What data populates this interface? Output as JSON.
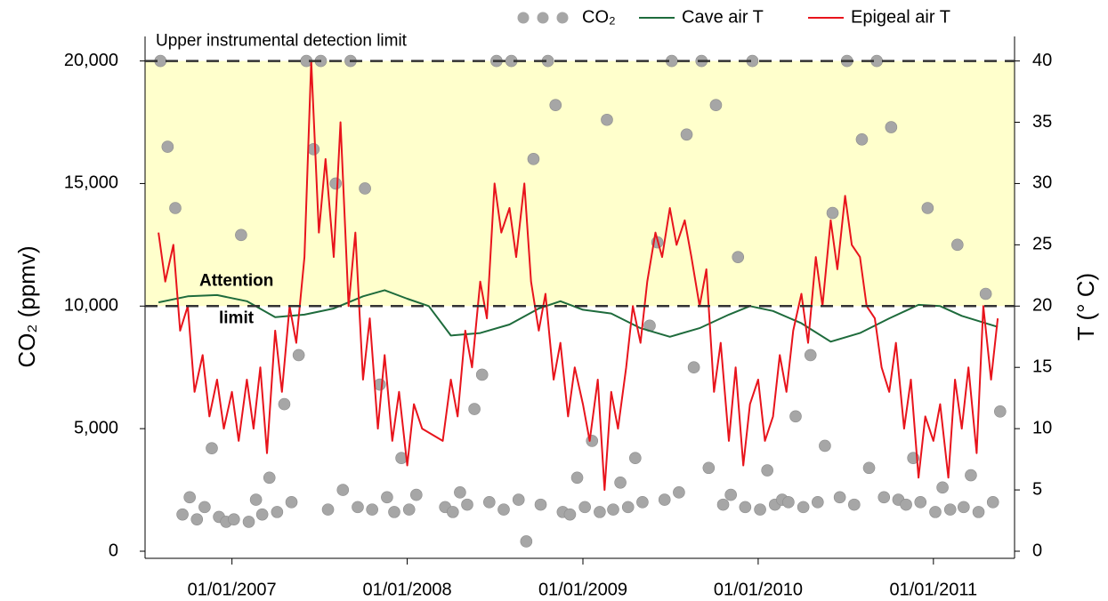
{
  "chart_data": {
    "type": "scatter",
    "y_label": "CO₂ (ppmv)",
    "y2_label": "T (° C)",
    "xlim": [
      "2006-07-04",
      "2011-06-19"
    ],
    "xticks": [
      {
        "value": "2007-01-01",
        "label": "01/01/2007"
      },
      {
        "value": "2008-01-01",
        "label": "01/01/2008"
      },
      {
        "value": "2009-01-01",
        "label": "01/01/2009"
      },
      {
        "value": "2010-01-01",
        "label": "01/01/2010"
      },
      {
        "value": "2011-01-01",
        "label": "01/01/2011"
      }
    ],
    "ylim": [
      0,
      21000
    ],
    "yticks": [
      0,
      {
        "value": 5000,
        "label": "5,000"
      },
      {
        "value": 10000,
        "label": "10,000"
      },
      {
        "value": 15000,
        "label": "15,000"
      },
      {
        "value": 20000,
        "label": "20,000"
      }
    ],
    "y2lim": [
      0,
      42
    ],
    "y2ticks": [
      0,
      5,
      10,
      15,
      20,
      25,
      30,
      35,
      40
    ],
    "band": {
      "from": 10000,
      "to": 20000,
      "color": "#ffffcc"
    },
    "reference_lines": [
      {
        "value": 20000,
        "label": "Upper instrumental detection limit"
      },
      {
        "value": 10000,
        "label": [
          "Attention",
          "limit"
        ]
      }
    ],
    "series": [
      {
        "name": "CO₂",
        "type": "scatter",
        "color": "#a6a6a6",
        "x": [
          "2006-08-05",
          "2006-08-20",
          "2006-09-05",
          "2006-09-20",
          "2006-10-05",
          "2006-10-20",
          "2006-11-05",
          "2006-11-20",
          "2006-12-05",
          "2006-12-20",
          "2007-01-05",
          "2007-01-20",
          "2007-02-05",
          "2007-02-20",
          "2007-03-05",
          "2007-03-20",
          "2007-04-05",
          "2007-04-20",
          "2007-05-05",
          "2007-05-20",
          "2007-06-05",
          "2007-06-20",
          "2007-07-05",
          "2007-07-20",
          "2007-08-05",
          "2007-08-20",
          "2007-09-05",
          "2007-09-20",
          "2007-10-05",
          "2007-10-20",
          "2007-11-05",
          "2007-11-20",
          "2007-12-05",
          "2007-12-20",
          "2008-01-05",
          "2008-01-20",
          "2008-03-20",
          "2008-04-05",
          "2008-04-20",
          "2008-05-05",
          "2008-05-20",
          "2008-06-05",
          "2008-06-20",
          "2008-07-05",
          "2008-07-20",
          "2008-08-05",
          "2008-08-20",
          "2008-09-05",
          "2008-09-20",
          "2008-10-05",
          "2008-10-20",
          "2008-11-05",
          "2008-11-20",
          "2008-12-05",
          "2008-12-20",
          "2009-01-05",
          "2009-01-20",
          "2009-02-05",
          "2009-02-20",
          "2009-03-05",
          "2009-03-20",
          "2009-04-05",
          "2009-04-20",
          "2009-05-05",
          "2009-05-20",
          "2009-06-05",
          "2009-06-20",
          "2009-07-05",
          "2009-07-20",
          "2009-08-05",
          "2009-08-20",
          "2009-09-05",
          "2009-09-20",
          "2009-10-05",
          "2009-10-20",
          "2009-11-05",
          "2009-11-20",
          "2009-12-05",
          "2009-12-20",
          "2010-01-05",
          "2010-01-20",
          "2010-02-05",
          "2010-02-20",
          "2010-03-05",
          "2010-03-20",
          "2010-04-05",
          "2010-04-20",
          "2010-05-05",
          "2010-05-20",
          "2010-06-05",
          "2010-06-20",
          "2010-07-05",
          "2010-07-20",
          "2010-08-05",
          "2010-08-20",
          "2010-09-05",
          "2010-09-20",
          "2010-10-05",
          "2010-10-20",
          "2010-11-05",
          "2010-11-20",
          "2010-12-05",
          "2010-12-20",
          "2011-01-05",
          "2011-01-20",
          "2011-02-05",
          "2011-02-20",
          "2011-03-05",
          "2011-03-20",
          "2011-04-05",
          "2011-04-20",
          "2011-05-05",
          "2011-05-20"
        ],
        "values": [
          20000,
          16500,
          14000,
          1500,
          2200,
          1300,
          1800,
          4200,
          1400,
          1200,
          1300,
          12900,
          1200,
          2100,
          1500,
          3000,
          1600,
          6000,
          2000,
          8000,
          20000,
          16400,
          20000,
          1700,
          15000,
          2500,
          20000,
          1800,
          14800,
          1700,
          6800,
          2200,
          1600,
          3800,
          1700,
          2300,
          1800,
          1600,
          2400,
          1900,
          5800,
          7200,
          2000,
          20000,
          1700,
          20000,
          2100,
          400,
          16000,
          1900,
          20000,
          18200,
          1600,
          1500,
          3000,
          1800,
          4500,
          1600,
          17600,
          1700,
          2800,
          1800,
          3800,
          2000,
          9200,
          12600,
          2100,
          20000,
          2400,
          17000,
          7500,
          20000,
          3400,
          18200,
          1900,
          2300,
          12000,
          1800,
          20000,
          1700,
          3300,
          1900,
          2100,
          2000,
          5500,
          1800,
          8000,
          2000,
          4300,
          13800,
          2200,
          20000,
          1900,
          16800,
          3400,
          20000,
          2200,
          17300,
          2100,
          1900,
          3800,
          2000,
          14000,
          1600,
          2600,
          1700,
          12500,
          1800,
          3100,
          1600,
          10500,
          2000,
          5700
        ]
      },
      {
        "name": "Cave air T",
        "type": "line",
        "axis": "y2",
        "color": "#1e6b3c",
        "x": [
          "2006-08-01",
          "2006-10-01",
          "2006-12-01",
          "2007-02-01",
          "2007-04-01",
          "2007-06-01",
          "2007-08-01",
          "2007-10-01",
          "2007-11-15",
          "2008-01-01",
          "2008-02-15",
          "2008-04-01",
          "2008-06-01",
          "2008-08-01",
          "2008-10-01",
          "2008-11-15",
          "2009-01-01",
          "2009-03-01",
          "2009-05-01",
          "2009-07-01",
          "2009-09-01",
          "2009-11-01",
          "2009-12-15",
          "2010-02-01",
          "2010-04-01",
          "2010-06-01",
          "2010-08-01",
          "2010-10-01",
          "2010-12-01",
          "2011-01-15",
          "2011-03-01",
          "2011-05-15"
        ],
        "values": [
          20.3,
          20.8,
          20.9,
          20.4,
          19.1,
          19.3,
          19.8,
          20.8,
          21.3,
          20.6,
          20.0,
          17.6,
          17.8,
          18.5,
          19.8,
          20.4,
          19.7,
          19.4,
          18.2,
          17.5,
          18.2,
          19.3,
          20.0,
          19.6,
          18.6,
          17.1,
          17.8,
          19.0,
          20.1,
          20.0,
          19.2,
          18.3
        ]
      },
      {
        "name": "Epigeal air T",
        "type": "line",
        "axis": "y2",
        "color": "#e8141c",
        "x": [
          "2006-08-01",
          "2006-08-15",
          "2006-09-01",
          "2006-09-15",
          "2006-10-01",
          "2006-10-15",
          "2006-11-01",
          "2006-11-15",
          "2006-12-01",
          "2006-12-15",
          "2007-01-01",
          "2007-01-15",
          "2007-02-01",
          "2007-02-15",
          "2007-03-01",
          "2007-03-15",
          "2007-04-01",
          "2007-04-15",
          "2007-05-01",
          "2007-05-15",
          "2007-06-01",
          "2007-06-15",
          "2007-07-01",
          "2007-07-15",
          "2007-08-01",
          "2007-08-15",
          "2007-09-01",
          "2007-09-15",
          "2007-10-01",
          "2007-10-15",
          "2007-11-01",
          "2007-11-15",
          "2007-12-01",
          "2007-12-15",
          "2008-01-01",
          "2008-01-15",
          "2008-02-01",
          "2008-03-15",
          "2008-04-01",
          "2008-04-15",
          "2008-05-01",
          "2008-05-15",
          "2008-06-01",
          "2008-06-15",
          "2008-07-01",
          "2008-07-15",
          "2008-08-01",
          "2008-08-15",
          "2008-09-01",
          "2008-09-15",
          "2008-10-01",
          "2008-10-15",
          "2008-11-01",
          "2008-11-15",
          "2008-12-01",
          "2008-12-15",
          "2009-01-01",
          "2009-01-15",
          "2009-02-01",
          "2009-02-15",
          "2009-03-01",
          "2009-03-15",
          "2009-04-01",
          "2009-04-15",
          "2009-05-01",
          "2009-05-15",
          "2009-06-01",
          "2009-06-15",
          "2009-07-01",
          "2009-07-15",
          "2009-08-01",
          "2009-08-15",
          "2009-09-01",
          "2009-09-15",
          "2009-10-01",
          "2009-10-15",
          "2009-11-01",
          "2009-11-15",
          "2009-12-01",
          "2009-12-15",
          "2010-01-01",
          "2010-01-15",
          "2010-02-01",
          "2010-02-15",
          "2010-03-01",
          "2010-03-15",
          "2010-04-01",
          "2010-04-15",
          "2010-05-01",
          "2010-05-15",
          "2010-06-01",
          "2010-06-15",
          "2010-07-01",
          "2010-07-15",
          "2010-08-01",
          "2010-08-15",
          "2010-09-01",
          "2010-09-15",
          "2010-10-01",
          "2010-10-15",
          "2010-11-01",
          "2010-11-15",
          "2010-12-01",
          "2010-12-15",
          "2011-01-01",
          "2011-01-15",
          "2011-02-01",
          "2011-02-15",
          "2011-03-01",
          "2011-03-15",
          "2011-04-01",
          "2011-04-15",
          "2011-05-01",
          "2011-05-15"
        ],
        "values": [
          26,
          22,
          25,
          18,
          20,
          13,
          16,
          11,
          14,
          10,
          13,
          9,
          14,
          10,
          15,
          8,
          18,
          13,
          20,
          17,
          24,
          40,
          26,
          32,
          24,
          35,
          20,
          26,
          14,
          19,
          10,
          16,
          9,
          13,
          7,
          12,
          10,
          9,
          14,
          11,
          18,
          15,
          22,
          19,
          30,
          26,
          28,
          24,
          30,
          22,
          18,
          21,
          14,
          17,
          11,
          15,
          12,
          9,
          14,
          5,
          13,
          10,
          15,
          20,
          17,
          22,
          26,
          24,
          28,
          25,
          27,
          24,
          20,
          23,
          13,
          17,
          9,
          15,
          7,
          12,
          14,
          9,
          11,
          16,
          13,
          18,
          21,
          17,
          24,
          20,
          27,
          23,
          29,
          25,
          24,
          20,
          19,
          15,
          13,
          17,
          10,
          14,
          6,
          11,
          9,
          12,
          6,
          14,
          10,
          15,
          8,
          20,
          14,
          19
        ]
      }
    ]
  }
}
